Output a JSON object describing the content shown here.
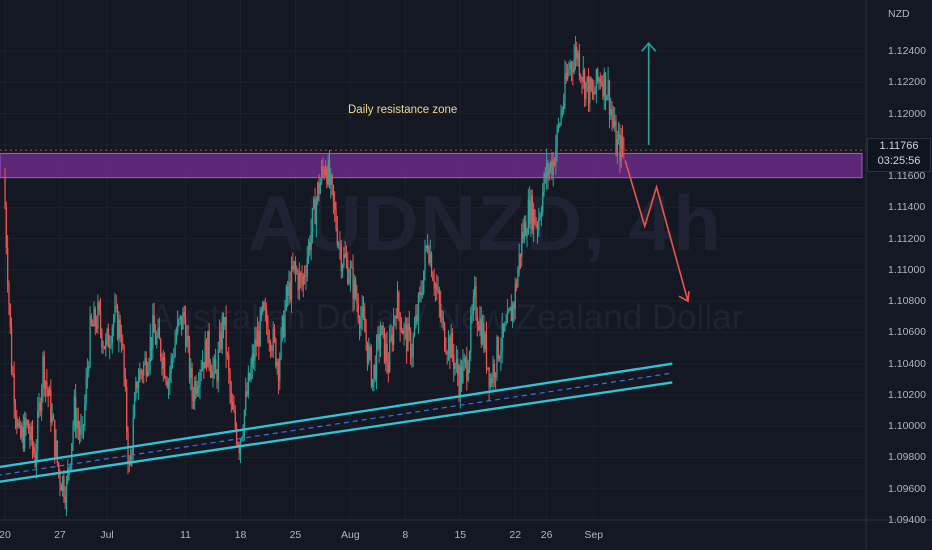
{
  "symbol_watermark": "AUDNZD, 4h",
  "description_watermark": "Australian Dollar / New Zealand Dollar",
  "currency_unit": "NZD",
  "zone_label": "Daily resistance zone",
  "last_price": "1.11766",
  "countdown": "03:25:56",
  "colors": {
    "background": "#141823",
    "bull_candle": "#26a69a",
    "bear_candle": "#ef5350",
    "zone_fill": "#6a2a86",
    "channel_line": "#2ec4d6",
    "channel_mid": "#3a6fe0",
    "arrow_up": "#26a69a",
    "arrow_down": "#ef5350"
  },
  "chart_data": {
    "type": "candlestick",
    "ylim": [
      1.094,
      1.1265
    ],
    "y_ticks": [
      "1.12400",
      "1.12200",
      "1.12000",
      "1.11800",
      "1.11600",
      "1.11400",
      "1.11200",
      "1.11000",
      "1.10800",
      "1.10600",
      "1.10400",
      "1.10200",
      "1.10000",
      "1.09800",
      "1.09600",
      "1.09400"
    ],
    "x_ticks": [
      {
        "label": "20",
        "day": 0
      },
      {
        "label": "27",
        "day": 7
      },
      {
        "label": "Jul",
        "day": 13
      },
      {
        "label": "11",
        "day": 23
      },
      {
        "label": "18",
        "day": 30
      },
      {
        "label": "25",
        "day": 37
      },
      {
        "label": "Aug",
        "day": 44
      },
      {
        "label": "8",
        "day": 51
      },
      {
        "label": "15",
        "day": 58
      },
      {
        "label": "22",
        "day": 65
      },
      {
        "label": "26",
        "day": 69
      },
      {
        "label": "Sep",
        "day": 75
      }
    ],
    "close_path": [
      [
        0,
        1.116
      ],
      [
        1,
        1.104
      ],
      [
        2,
        1.099
      ],
      [
        3,
        1.1
      ],
      [
        4,
        1.098
      ],
      [
        5,
        1.104
      ],
      [
        6,
        1.101
      ],
      [
        7,
        1.097
      ],
      [
        8,
        1.096
      ],
      [
        9,
        1.101
      ],
      [
        10,
        1.099
      ],
      [
        11,
        1.106
      ],
      [
        12,
        1.107
      ],
      [
        13,
        1.105
      ],
      [
        14,
        1.107
      ],
      [
        15,
        1.106
      ],
      [
        16,
        1.097
      ],
      [
        17,
        1.103
      ],
      [
        18,
        1.104
      ],
      [
        19,
        1.106
      ],
      [
        20,
        1.105
      ],
      [
        21,
        1.103
      ],
      [
        22,
        1.106
      ],
      [
        23,
        1.107
      ],
      [
        24,
        1.102
      ],
      [
        25,
        1.104
      ],
      [
        26,
        1.105
      ],
      [
        27,
        1.103
      ],
      [
        28,
        1.107
      ],
      [
        29,
        1.101
      ],
      [
        30,
        1.099
      ],
      [
        31,
        1.102
      ],
      [
        32,
        1.105
      ],
      [
        33,
        1.107
      ],
      [
        34,
        1.106
      ],
      [
        35,
        1.104
      ],
      [
        36,
        1.108
      ],
      [
        37,
        1.11
      ],
      [
        38,
        1.109
      ],
      [
        39,
        1.112
      ],
      [
        40,
        1.115
      ],
      [
        41,
        1.117
      ],
      [
        42,
        1.114
      ],
      [
        43,
        1.111
      ],
      [
        44,
        1.11
      ],
      [
        45,
        1.108
      ],
      [
        46,
        1.106
      ],
      [
        47,
        1.103
      ],
      [
        48,
        1.106
      ],
      [
        49,
        1.104
      ],
      [
        50,
        1.108
      ],
      [
        51,
        1.106
      ],
      [
        52,
        1.105
      ],
      [
        53,
        1.108
      ],
      [
        54,
        1.112
      ],
      [
        55,
        1.109
      ],
      [
        56,
        1.106
      ],
      [
        57,
        1.105
      ],
      [
        58,
        1.103
      ],
      [
        59,
        1.104
      ],
      [
        60,
        1.108
      ],
      [
        61,
        1.106
      ],
      [
        62,
        1.103
      ],
      [
        63,
        1.105
      ],
      [
        64,
        1.106
      ],
      [
        65,
        1.108
      ],
      [
        66,
        1.112
      ],
      [
        67,
        1.114
      ],
      [
        68,
        1.113
      ],
      [
        69,
        1.116
      ],
      [
        70,
        1.117
      ],
      [
        71,
        1.12
      ],
      [
        72,
        1.123
      ],
      [
        73,
        1.124
      ],
      [
        74,
        1.122
      ],
      [
        75,
        1.121
      ],
      [
        76,
        1.1225
      ],
      [
        77,
        1.1215
      ],
      [
        78,
        1.118
      ],
      [
        79,
        1.11766
      ]
    ],
    "resistance_zone": [
      1.1159,
      1.11745
    ],
    "channel_lines": [
      {
        "name": "lower",
        "from": [
          -13.5,
          1.0955
        ],
        "to": [
          85,
          1.1028
        ]
      },
      {
        "name": "upper",
        "from": [
          -13.5,
          1.0964
        ],
        "to": [
          85,
          1.104
        ]
      },
      {
        "name": "mid",
        "from": [
          -13.5,
          1.0959
        ],
        "to": [
          85,
          1.1034
        ]
      }
    ],
    "projection_up": {
      "from": [
        82,
        1.118
      ],
      "to": [
        82,
        1.1245
      ]
    },
    "projection_down": [
      [
        79,
        1.117
      ],
      [
        81.5,
        1.1128
      ],
      [
        83,
        1.1153
      ],
      [
        87,
        1.108
      ]
    ]
  }
}
